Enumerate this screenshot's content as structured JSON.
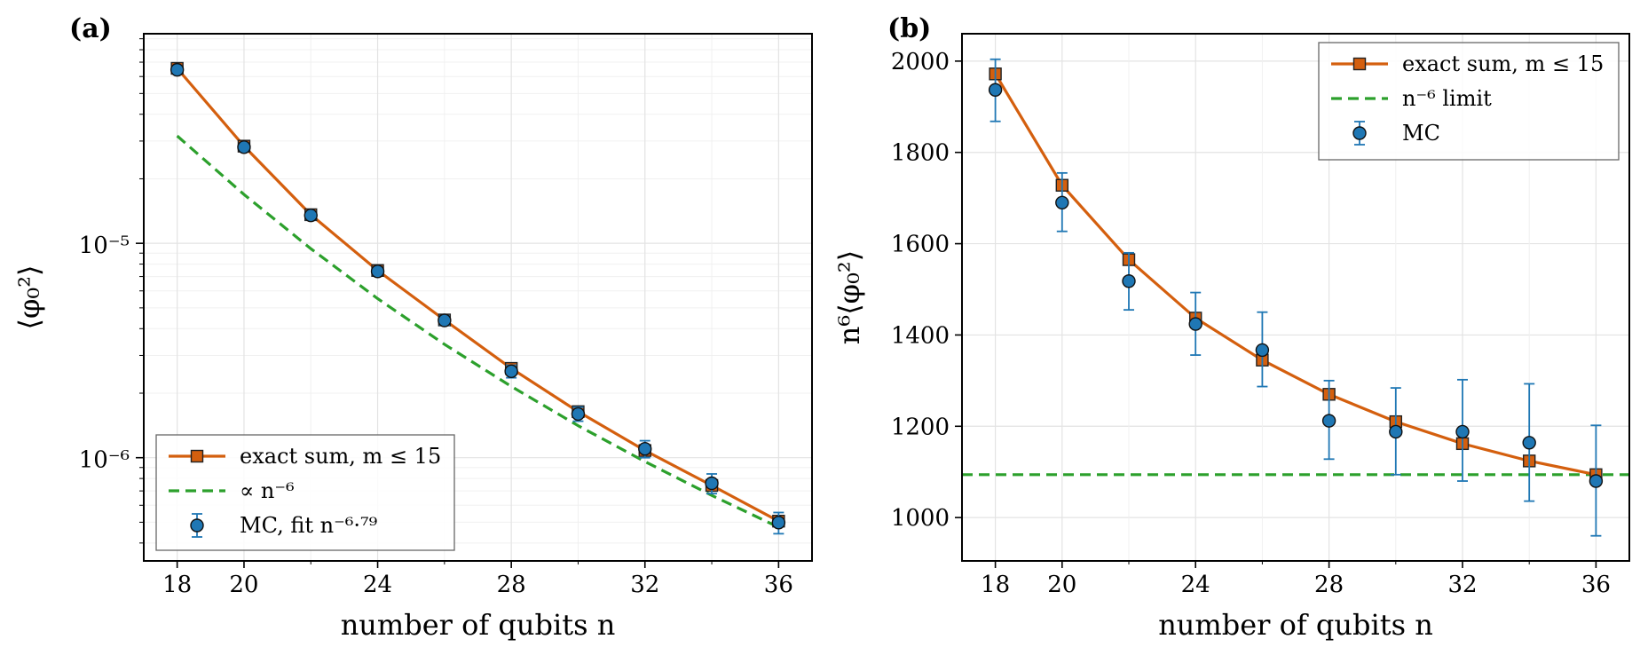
{
  "chart_data": [
    {
      "type": "line",
      "panel_label": "(a)",
      "xlabel": "number of qubits n",
      "ylabel": "⟨φ₀²⟩",
      "yscale": "log",
      "xlim": [
        17,
        37
      ],
      "ylim": [
        3.3e-07,
        9.5e-05
      ],
      "xticks": [
        18,
        20,
        24,
        28,
        32,
        36
      ],
      "yticks": [
        {
          "value": 1e-05,
          "label": "10⁻⁵"
        },
        {
          "value": 1e-06,
          "label": "10⁻⁶"
        }
      ],
      "grid": true,
      "legend_position": "lower-left",
      "x": [
        18,
        20,
        22,
        24,
        26,
        28,
        30,
        32,
        34,
        36
      ],
      "series": [
        {
          "name": "exact sum, m ≤ 15",
          "style": "line-square",
          "color": "#d45f0e",
          "values": [
            6.55e-05,
            2.84e-05,
            1.36e-05,
            7.47e-06,
            4.39e-06,
            2.61e-06,
            1.64e-06,
            1.08e-06,
            7.42e-07,
            5.06e-07
          ]
        },
        {
          "name": "∝ n⁻⁶",
          "style": "dashed",
          "color": "#2ca02c",
          "values": [
            3.17e-05,
            1.69e-05,
            9.44e-06,
            5.52e-06,
            3.38e-06,
            2.15e-06,
            1.41e-06,
            9.59e-07,
            6.67e-07,
            4.74e-07
          ]
        },
        {
          "name": "MC, fit n⁻⁶·⁷⁹",
          "style": "points-errorbar",
          "color": "#1f77b4",
          "values": [
            6.45e-05,
            2.81e-05,
            1.35e-05,
            7.4e-06,
            4.37e-06,
            2.53e-06,
            1.6e-06,
            1.1e-06,
            7.6e-07,
            4.98e-07
          ],
          "err_low": [
            6.2e-05,
            2.7e-05,
            1.29e-05,
            7.1e-06,
            4.15e-06,
            2.36e-06,
            1.48e-06,
            1e-06,
            6.8e-07,
            4.42e-07
          ],
          "err_high": [
            6.7e-05,
            2.92e-05,
            1.41e-05,
            7.7e-06,
            4.6e-06,
            2.7e-06,
            1.72e-06,
            1.2e-06,
            8.4e-07,
            5.55e-07
          ]
        }
      ]
    },
    {
      "type": "line",
      "panel_label": "(b)",
      "xlabel": "number of qubits n",
      "ylabel": "n⁶⟨φ₀²⟩",
      "yscale": "linear",
      "xlim": [
        17,
        37
      ],
      "ylim": [
        905,
        2060
      ],
      "xticks": [
        18,
        20,
        24,
        28,
        32,
        36
      ],
      "yticks": [
        1000,
        1200,
        1400,
        1600,
        1800,
        2000
      ],
      "grid": true,
      "legend_position": "upper-right",
      "x": [
        18,
        20,
        22,
        24,
        26,
        28,
        30,
        32,
        34,
        36
      ],
      "series": [
        {
          "name": "exact sum, m ≤ 15",
          "style": "line-square",
          "color": "#d45f0e",
          "values": [
            1972,
            1728,
            1565,
            1437,
            1345,
            1270,
            1210,
            1162,
            1124,
            1094
          ]
        },
        {
          "name": "n⁻⁶ limit",
          "style": "hline-dashed",
          "color": "#2ca02c",
          "values": [
            1094,
            1094,
            1094,
            1094,
            1094,
            1094,
            1094,
            1094,
            1094,
            1094
          ]
        },
        {
          "name": "MC",
          "style": "points-errorbar",
          "color": "#1f77b4",
          "values": [
            1937,
            1690,
            1518,
            1424,
            1367,
            1212,
            1188,
            1188,
            1164,
            1080
          ],
          "err_low": [
            1868,
            1627,
            1455,
            1356,
            1287,
            1128,
            1094,
            1080,
            1036,
            960
          ],
          "err_high": [
            2004,
            1755,
            1580,
            1493,
            1450,
            1300,
            1284,
            1302,
            1293,
            1202
          ]
        }
      ]
    }
  ]
}
